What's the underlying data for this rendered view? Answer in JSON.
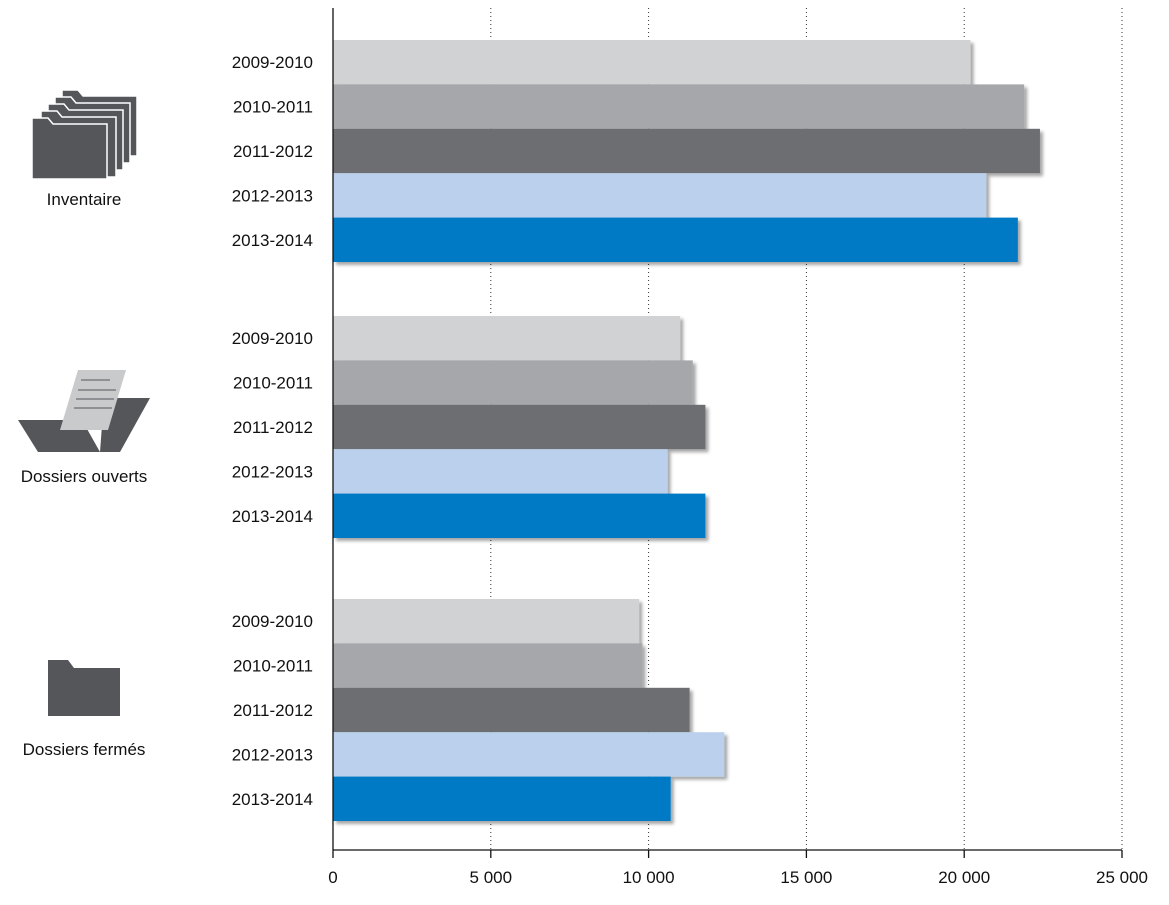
{
  "chart_data": {
    "type": "bar",
    "orientation": "horizontal",
    "xlim": [
      0,
      25000
    ],
    "xticks": [
      0,
      5000,
      10000,
      15000,
      20000,
      25000
    ],
    "xtick_labels": [
      "0",
      "5 000",
      "10 000",
      "15 000",
      "20 000",
      "25 000"
    ],
    "grid": "vertical dotted",
    "series": [
      {
        "name": "2009-2010",
        "color": "#d1d2d4"
      },
      {
        "name": "2010-2011",
        "color": "#a6a7aa"
      },
      {
        "name": "2011-2012",
        "color": "#6d6e71"
      },
      {
        "name": "2012-2013",
        "color": "#bad0ec"
      },
      {
        "name": "2013-2014",
        "color": "#007ac4"
      }
    ],
    "groups": [
      {
        "label": "Inventaire",
        "icon": "stacked-folders-icon",
        "values": [
          20200,
          21900,
          22400,
          20700,
          21700
        ]
      },
      {
        "label": "Dossiers ouverts",
        "icon": "open-folder-icon",
        "values": [
          11000,
          11400,
          11800,
          10600,
          11800
        ]
      },
      {
        "label": "Dossiers fermés",
        "icon": "closed-folder-icon",
        "values": [
          9700,
          9800,
          11300,
          12400,
          10700
        ]
      }
    ]
  }
}
